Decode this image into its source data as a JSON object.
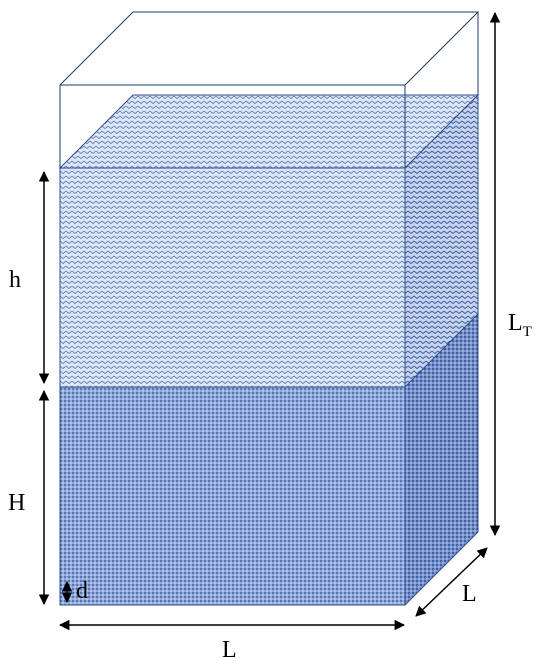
{
  "labels": {
    "h": "h",
    "H": "H",
    "d": "d",
    "bottom_L": "L",
    "side_L": "L",
    "total_L": {
      "main": "L",
      "subscript": "T"
    }
  }
}
